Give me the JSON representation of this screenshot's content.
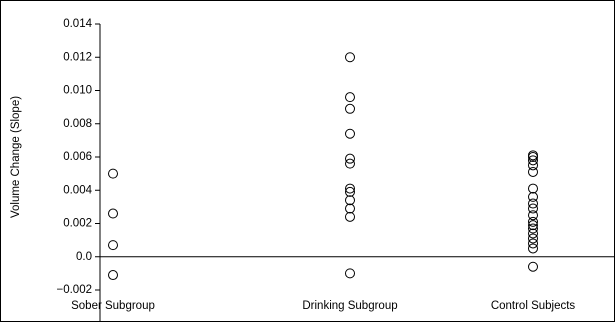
{
  "chart_data": {
    "type": "scatter",
    "y_label": "Volume Change (Slope)",
    "categories": [
      "Sober Subgroup",
      "Drinking Subgroup",
      "Control Subjects"
    ],
    "values": [
      [
        0.005,
        0.0026,
        0.0007,
        -0.0011
      ],
      [
        0.012,
        0.0096,
        0.0089,
        0.0074,
        0.0059,
        0.0056,
        0.0041,
        0.0039,
        0.0034,
        0.0029,
        0.0024,
        -0.001
      ],
      [
        0.0061,
        0.006,
        0.0058,
        0.0055,
        0.0051,
        0.0041,
        0.0036,
        0.0032,
        0.0029,
        0.0025,
        0.0021,
        0.0019,
        0.0017,
        0.0014,
        0.0011,
        0.0008,
        0.0005,
        -0.0006
      ]
    ],
    "color": "#000000",
    "ylim": [
      -0.002,
      0.014
    ],
    "yticks": [
      {
        "value": -0.002,
        "label": "−0.002"
      },
      {
        "value": 0,
        "label": "0.0"
      },
      0.002,
      0.004,
      0.006,
      0.008,
      {
        "value": 0.01,
        "label": "0.010"
      },
      0.012,
      0.014
    ]
  }
}
